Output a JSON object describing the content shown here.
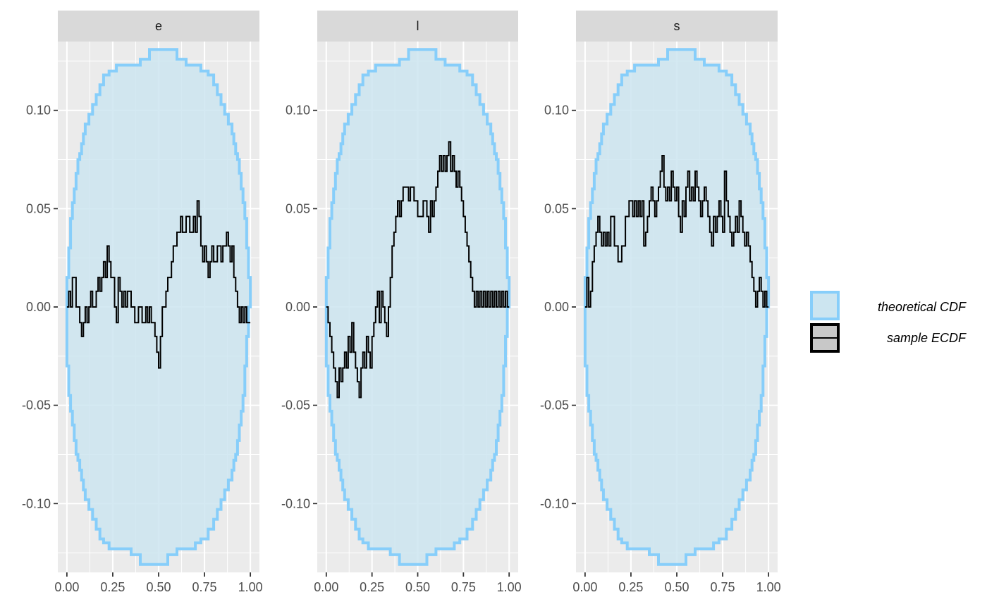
{
  "chart_data": {
    "type": "line",
    "facets": [
      "e",
      "l",
      "s"
    ],
    "xlim": [
      0,
      1
    ],
    "ylim": [
      -0.135,
      0.135
    ],
    "x_ticks": [
      0,
      0.25,
      0.5,
      0.75,
      1
    ],
    "x_tick_labels": [
      "0.00",
      "0.25",
      "0.50",
      "0.75",
      "1.00"
    ],
    "y_ticks": [
      -0.1,
      -0.05,
      0,
      0.05,
      0.1
    ],
    "y_tick_labels": [
      "-0.10",
      "-0.05",
      "0.00",
      "0.05",
      "0.10"
    ],
    "grid": true,
    "legend_position": "right",
    "legend": [
      {
        "label": "theoretical CDF",
        "color": "#87cefa",
        "fill": "#cce5f0"
      },
      {
        "label": "sample ECDF",
        "color": "#000000",
        "fill": "#c8c8c8"
      }
    ],
    "band": {
      "x": [
        0,
        0.01,
        0.02,
        0.03,
        0.04,
        0.05,
        0.06,
        0.07,
        0.08,
        0.09,
        0.1,
        0.12,
        0.14,
        0.16,
        0.18,
        0.2,
        0.23,
        0.27,
        0.3,
        0.35,
        0.4,
        0.45,
        0.5,
        0.55,
        0.6,
        0.65,
        0.7,
        0.73,
        0.77,
        0.8,
        0.82,
        0.84,
        0.86,
        0.88,
        0.9,
        0.91,
        0.92,
        0.93,
        0.94,
        0.95,
        0.96,
        0.97,
        0.98,
        0.99,
        1.0
      ],
      "upper": [
        0.015,
        0.03,
        0.045,
        0.053,
        0.06,
        0.068,
        0.075,
        0.078,
        0.083,
        0.088,
        0.093,
        0.098,
        0.103,
        0.108,
        0.113,
        0.118,
        0.12,
        0.123,
        0.123,
        0.123,
        0.126,
        0.131,
        0.131,
        0.131,
        0.126,
        0.123,
        0.123,
        0.12,
        0.118,
        0.113,
        0.108,
        0.103,
        0.098,
        0.093,
        0.088,
        0.083,
        0.078,
        0.075,
        0.068,
        0.06,
        0.053,
        0.045,
        0.03,
        0.015,
        0.0
      ],
      "lower": [
        -0.015,
        -0.03,
        -0.045,
        -0.053,
        -0.06,
        -0.068,
        -0.075,
        -0.078,
        -0.083,
        -0.088,
        -0.093,
        -0.098,
        -0.103,
        -0.108,
        -0.113,
        -0.118,
        -0.12,
        -0.123,
        -0.123,
        -0.123,
        -0.126,
        -0.131,
        -0.131,
        -0.131,
        -0.126,
        -0.123,
        -0.123,
        -0.12,
        -0.118,
        -0.113,
        -0.108,
        -0.103,
        -0.098,
        -0.093,
        -0.088,
        -0.083,
        -0.078,
        -0.075,
        -0.068,
        -0.06,
        -0.053,
        -0.045,
        -0.03,
        -0.015,
        0.0
      ]
    },
    "series": [
      {
        "facet": "e",
        "x": [
          0.0,
          0.01,
          0.02,
          0.03,
          0.05,
          0.07,
          0.08,
          0.09,
          0.1,
          0.11,
          0.12,
          0.13,
          0.14,
          0.16,
          0.17,
          0.18,
          0.19,
          0.2,
          0.21,
          0.22,
          0.23,
          0.24,
          0.26,
          0.27,
          0.28,
          0.29,
          0.3,
          0.31,
          0.32,
          0.33,
          0.35,
          0.37,
          0.39,
          0.41,
          0.43,
          0.44,
          0.45,
          0.46,
          0.48,
          0.49,
          0.5,
          0.51,
          0.52,
          0.54,
          0.55,
          0.57,
          0.58,
          0.6,
          0.62,
          0.63,
          0.65,
          0.67,
          0.69,
          0.7,
          0.71,
          0.72,
          0.73,
          0.74,
          0.75,
          0.76,
          0.77,
          0.78,
          0.79,
          0.8,
          0.82,
          0.84,
          0.85,
          0.87,
          0.88,
          0.89,
          0.9,
          0.91,
          0.92,
          0.93,
          0.94,
          0.95,
          0.96,
          0.97,
          0.98,
          0.99
        ],
        "y": [
          0.0,
          0.008,
          0.0,
          0.015,
          0.0,
          -0.008,
          -0.015,
          -0.008,
          0.0,
          -0.008,
          0.0,
          0.008,
          0.0,
          0.008,
          0.015,
          0.008,
          0.015,
          0.023,
          0.015,
          0.031,
          0.023,
          0.015,
          0.0,
          -0.008,
          0.015,
          0.008,
          0.0,
          0.008,
          0.0,
          0.008,
          0.0,
          -0.008,
          0.0,
          -0.008,
          0.0,
          -0.008,
          0.0,
          -0.008,
          -0.015,
          -0.023,
          -0.031,
          -0.015,
          0.0,
          0.008,
          0.015,
          0.023,
          0.031,
          0.038,
          0.046,
          0.038,
          0.046,
          0.038,
          0.046,
          0.038,
          0.054,
          0.046,
          0.031,
          0.023,
          0.031,
          0.023,
          0.015,
          0.023,
          0.031,
          0.023,
          0.031,
          0.023,
          0.031,
          0.038,
          0.031,
          0.023,
          0.031,
          0.015,
          0.008,
          0.0,
          -0.008,
          0.0,
          -0.008,
          0.0,
          -0.008,
          -0.008
        ]
      },
      {
        "facet": "l",
        "x": [
          0.0,
          0.01,
          0.02,
          0.03,
          0.04,
          0.05,
          0.06,
          0.07,
          0.08,
          0.09,
          0.1,
          0.11,
          0.12,
          0.13,
          0.14,
          0.15,
          0.16,
          0.17,
          0.18,
          0.19,
          0.2,
          0.21,
          0.22,
          0.23,
          0.24,
          0.25,
          0.26,
          0.27,
          0.28,
          0.29,
          0.3,
          0.31,
          0.32,
          0.33,
          0.34,
          0.35,
          0.36,
          0.37,
          0.38,
          0.39,
          0.4,
          0.41,
          0.42,
          0.43,
          0.45,
          0.46,
          0.47,
          0.48,
          0.5,
          0.53,
          0.55,
          0.56,
          0.57,
          0.58,
          0.59,
          0.6,
          0.61,
          0.62,
          0.63,
          0.64,
          0.65,
          0.66,
          0.67,
          0.68,
          0.69,
          0.7,
          0.71,
          0.72,
          0.73,
          0.74,
          0.75,
          0.76,
          0.77,
          0.78,
          0.79,
          0.8,
          0.81,
          0.82,
          0.83,
          0.84,
          0.85,
          0.86,
          0.87,
          0.88,
          0.89,
          0.9,
          0.91,
          0.92,
          0.93,
          0.94,
          0.95,
          0.96,
          0.97,
          0.98,
          0.99
        ],
        "y": [
          0.0,
          -0.008,
          -0.015,
          -0.023,
          -0.031,
          -0.038,
          -0.046,
          -0.031,
          -0.038,
          -0.031,
          -0.023,
          -0.031,
          -0.015,
          -0.023,
          -0.008,
          -0.023,
          -0.031,
          -0.038,
          -0.046,
          -0.031,
          -0.023,
          -0.031,
          -0.015,
          -0.023,
          -0.031,
          -0.015,
          -0.008,
          0.0,
          0.008,
          -0.008,
          0.008,
          0.0,
          -0.008,
          -0.015,
          0.0,
          0.015,
          0.031,
          0.038,
          0.046,
          0.054,
          0.046,
          0.054,
          0.061,
          0.061,
          0.054,
          0.061,
          0.061,
          0.054,
          0.046,
          0.054,
          0.046,
          0.038,
          0.054,
          0.046,
          0.054,
          0.061,
          0.069,
          0.077,
          0.069,
          0.077,
          0.069,
          0.077,
          0.084,
          0.069,
          0.077,
          0.069,
          0.061,
          0.069,
          0.061,
          0.054,
          0.046,
          0.038,
          0.031,
          0.023,
          0.015,
          0.008,
          0.0,
          0.008,
          0.0,
          0.008,
          0.0,
          0.008,
          0.0,
          0.008,
          0.0,
          0.008,
          0.0,
          0.008,
          0.0,
          0.008,
          0.0,
          0.008,
          0.0,
          0.008,
          0.0
        ]
      },
      {
        "facet": "s",
        "x": [
          0.0,
          0.01,
          0.02,
          0.03,
          0.04,
          0.05,
          0.06,
          0.07,
          0.08,
          0.09,
          0.1,
          0.11,
          0.12,
          0.13,
          0.14,
          0.16,
          0.18,
          0.2,
          0.22,
          0.24,
          0.26,
          0.27,
          0.28,
          0.29,
          0.3,
          0.31,
          0.32,
          0.33,
          0.34,
          0.35,
          0.36,
          0.37,
          0.38,
          0.39,
          0.4,
          0.41,
          0.42,
          0.43,
          0.44,
          0.45,
          0.46,
          0.47,
          0.48,
          0.49,
          0.5,
          0.51,
          0.52,
          0.53,
          0.54,
          0.55,
          0.56,
          0.57,
          0.58,
          0.59,
          0.6,
          0.61,
          0.62,
          0.63,
          0.64,
          0.65,
          0.66,
          0.67,
          0.68,
          0.69,
          0.7,
          0.71,
          0.72,
          0.73,
          0.74,
          0.75,
          0.76,
          0.77,
          0.78,
          0.79,
          0.8,
          0.81,
          0.82,
          0.83,
          0.84,
          0.85,
          0.86,
          0.87,
          0.88,
          0.89,
          0.9,
          0.91,
          0.92,
          0.93,
          0.94,
          0.95,
          0.96,
          0.97,
          0.98,
          0.99
        ],
        "y": [
          0.0,
          0.015,
          0.0,
          0.008,
          0.023,
          0.031,
          0.038,
          0.046,
          0.038,
          0.031,
          0.038,
          0.031,
          0.038,
          0.031,
          0.046,
          0.031,
          0.023,
          0.031,
          0.046,
          0.054,
          0.046,
          0.054,
          0.046,
          0.054,
          0.046,
          0.054,
          0.031,
          0.038,
          0.046,
          0.054,
          0.061,
          0.054,
          0.046,
          0.054,
          0.061,
          0.069,
          0.077,
          0.061,
          0.054,
          0.061,
          0.054,
          0.069,
          0.061,
          0.054,
          0.061,
          0.046,
          0.038,
          0.054,
          0.046,
          0.061,
          0.069,
          0.054,
          0.061,
          0.054,
          0.069,
          0.061,
          0.054,
          0.046,
          0.054,
          0.061,
          0.054,
          0.046,
          0.038,
          0.031,
          0.046,
          0.038,
          0.046,
          0.054,
          0.046,
          0.038,
          0.069,
          0.054,
          0.046,
          0.038,
          0.031,
          0.038,
          0.046,
          0.038,
          0.054,
          0.046,
          0.038,
          0.031,
          0.038,
          0.031,
          0.023,
          0.015,
          0.008,
          0.0,
          0.008,
          0.015,
          0.008,
          0.0,
          0.008,
          0.0
        ]
      }
    ]
  }
}
